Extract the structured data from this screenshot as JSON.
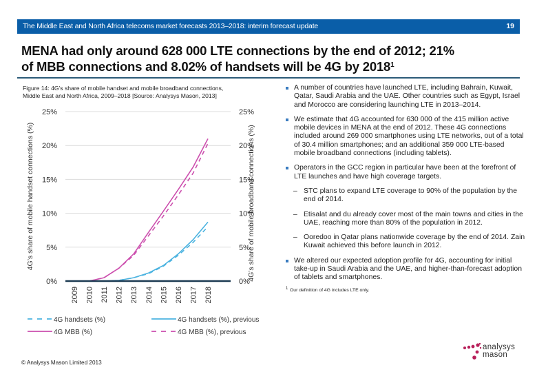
{
  "header": {
    "title": "The Middle East and North Africa telecoms market forecasts 2013–2018: interim forecast update",
    "page_number": "19",
    "bar_color": "#0a5ea8"
  },
  "slide": {
    "title_line1": "MENA had only around 628 000 LTE connections by the end of 2012; 21%",
    "title_line2": "of MBB connections and 8.02% of handsets will be 4G by 2018",
    "title_sup": "1"
  },
  "figure": {
    "caption_line1": "Figure 14: 4G’s share of mobile handset and mobile broadband connections,",
    "caption_line2": "Middle East and North Africa, 2009–2018 [Source: Analysys Mason, 2013]"
  },
  "chart_data": {
    "type": "line",
    "title": "4G’s share of mobile handset and mobile broadband connections, Middle East and North Africa, 2009–2018",
    "x": [
      "2009",
      "2010",
      "2011",
      "2012",
      "2013",
      "2014",
      "2015",
      "2016",
      "2017",
      "2018"
    ],
    "ylabel_left": "4G’s share of mobile handset connections (%)",
    "ylabel_right": "4G’s share of mobile broadband connections (%)",
    "ylim": [
      0,
      25
    ],
    "yticks": [
      "0%",
      "5%",
      "10%",
      "15%",
      "20%",
      "25%"
    ],
    "ytick_values": [
      0,
      5,
      10,
      15,
      20,
      25
    ],
    "grid": true,
    "legend_position": "bottom",
    "series": [
      {
        "name": "4G handsets (%)",
        "color": "#4bb3e0",
        "style": "dashed",
        "axis": "left",
        "values": [
          0,
          0,
          0,
          0.1,
          0.5,
          1.1,
          2.2,
          3.8,
          5.7,
          8.02
        ]
      },
      {
        "name": "4G handsets (%), previous",
        "color": "#4bb3e0",
        "style": "solid",
        "axis": "left",
        "values": [
          0,
          0,
          0,
          0.1,
          0.5,
          1.2,
          2.3,
          4.0,
          6.1,
          8.7
        ]
      },
      {
        "name": "4G MBB (%)",
        "color": "#cc4fae",
        "style": "solid",
        "axis": "right",
        "values": [
          0,
          0,
          0.5,
          1.9,
          4.0,
          7.2,
          10.3,
          13.5,
          16.8,
          21.0
        ]
      },
      {
        "name": "4G MBB (%), previous",
        "color": "#cc4fae",
        "style": "dashed",
        "axis": "right",
        "values": [
          0,
          0,
          0.5,
          1.9,
          3.8,
          6.7,
          9.6,
          12.7,
          15.9,
          20.3
        ]
      }
    ]
  },
  "bullets": [
    {
      "text": "A number of countries have launched LTE, including Bahrain, Kuwait, Qatar, Saudi Arabia and the UAE. Other countries such as Egypt, Israel and Morocco are considering launching LTE in 2013–2014."
    },
    {
      "text": "We estimate that 4G accounted for 630 000 of the 415 million active mobile devices in MENA at the end of 2012. These 4G connections included around 269 000 smartphones using LTE networks, out of a total of 30.4 million smartphones; and an additional 359 000 LTE-based mobile broadband connections (including tablets)."
    },
    {
      "text": "Operators in the GCC region in particular have been at the forefront of LTE launches and have high coverage targets."
    },
    {
      "text": "We altered our expected adoption profile for 4G, accounting for initial take-up in Saudi Arabia and the UAE, and higher-than-forecast adoption of tablets and smartphones."
    }
  ],
  "sub_bullets": [
    {
      "text": "STC plans to expand LTE coverage to 90% of the population by the end of 2014."
    },
    {
      "text": "Etisalat and du already cover most of the main towns and cities in the UAE, reaching more than 80% of the population in 2012."
    },
    {
      "text": "Ooredoo in Qatar plans nationwide coverage by the end of 2014. Zain Kuwait achieved this before launch in 2012."
    }
  ],
  "dash_glyph": "–",
  "footnote": {
    "mark": "1",
    "text": "Our definition of 4G includes LTE only."
  },
  "copyright": "© Analysys Mason Limited 2013",
  "logo": {
    "line1": "analysys",
    "line2": "mason",
    "dot_color": "#b8205a"
  }
}
